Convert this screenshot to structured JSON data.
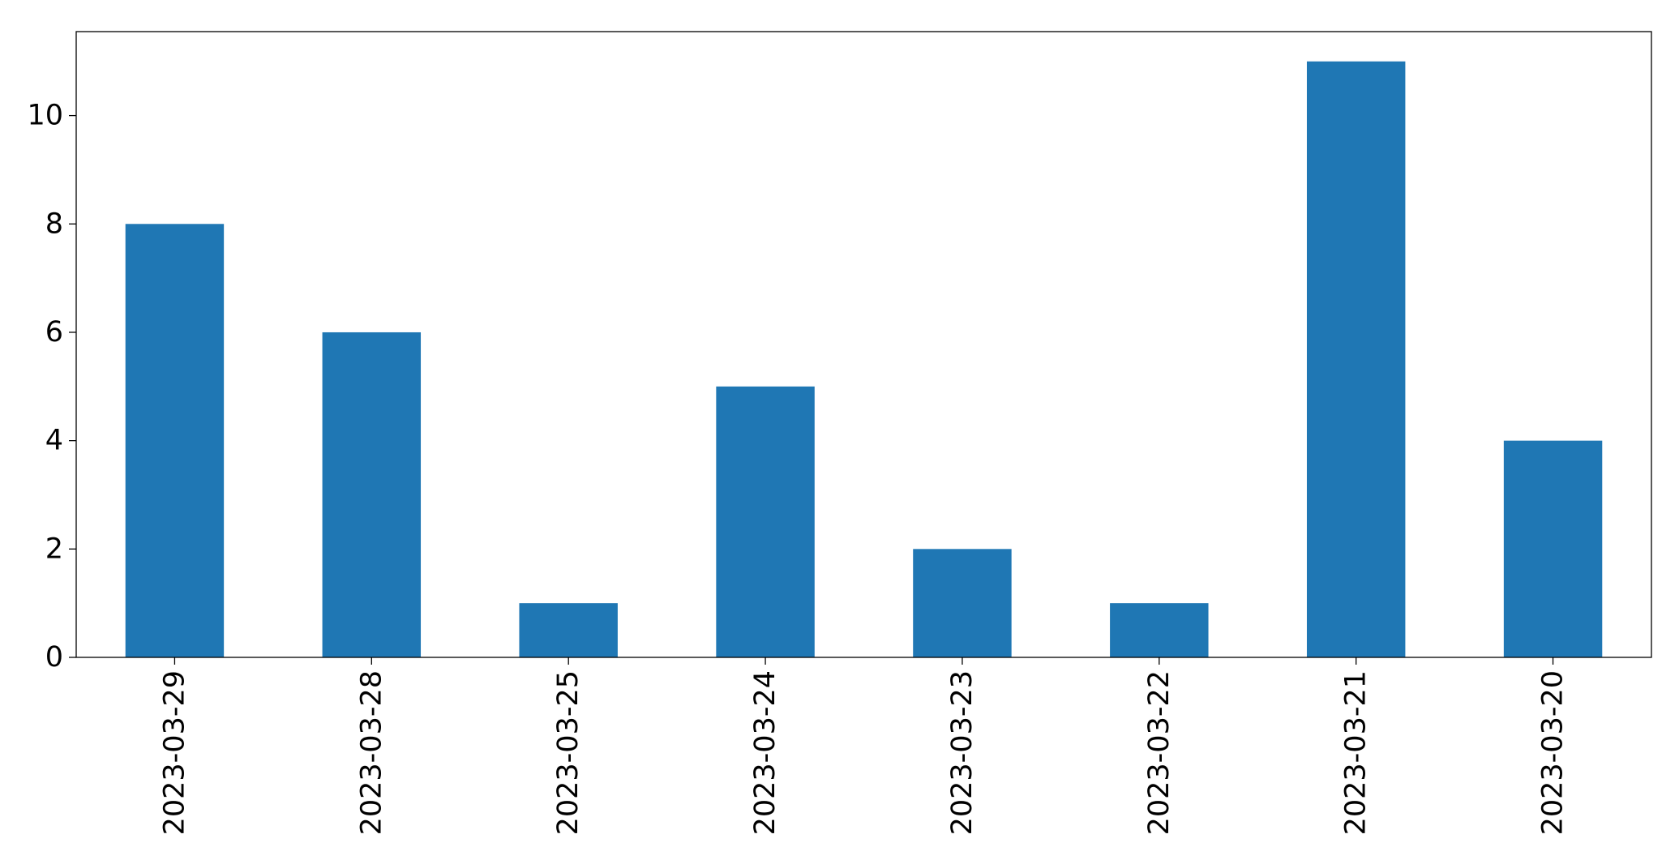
{
  "chart_data": {
    "type": "bar",
    "title": "",
    "xlabel": "",
    "ylabel": "",
    "categories": [
      "2023-03-29",
      "2023-03-28",
      "2023-03-25",
      "2023-03-24",
      "2023-03-23",
      "2023-03-22",
      "2023-03-21",
      "2023-03-20"
    ],
    "values": [
      8,
      6,
      1,
      5,
      2,
      1,
      11,
      4
    ],
    "ylim": [
      0,
      11.55
    ],
    "yticks": [
      0,
      2,
      4,
      6,
      8,
      10
    ],
    "grid": false,
    "legend": "none",
    "bar_color": "#1f77b4"
  }
}
